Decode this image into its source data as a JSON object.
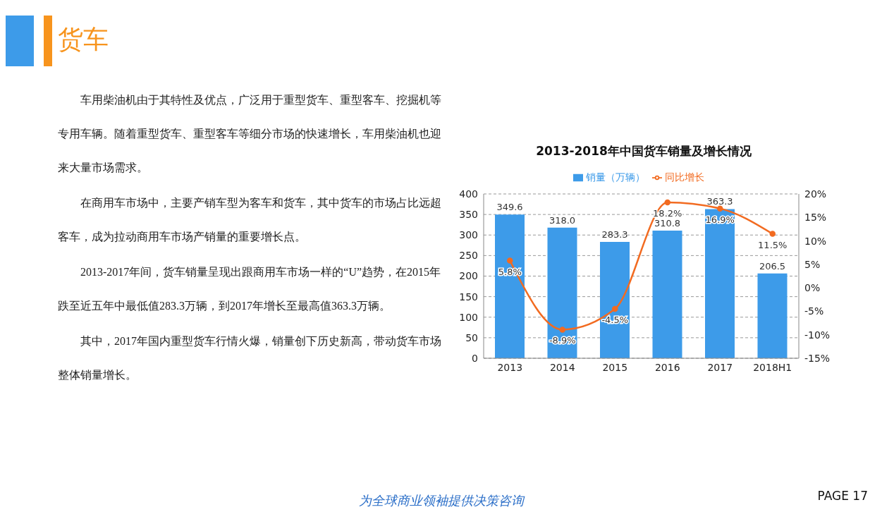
{
  "chart_data": {
    "type": "bar",
    "title": "2013-2018年中国货车销量及增长情况",
    "categories": [
      "2013",
      "2014",
      "2015",
      "2016",
      "2017",
      "2018H1"
    ],
    "series": [
      {
        "name": "销量（万辆）",
        "color": "#3d9be9",
        "values": [
          349.6,
          318.0,
          283.3,
          310.8,
          363.3,
          206.5
        ],
        "value_labels": [
          "349.6",
          "318.0",
          "283.3",
          "310.8",
          "363.3",
          "206.5"
        ]
      },
      {
        "name": "同比增长",
        "type": "line",
        "axis": "y2",
        "color": "#f26b21",
        "values": [
          5.8,
          -8.9,
          -4.5,
          18.2,
          16.9,
          11.5
        ],
        "value_labels": [
          "5.8%",
          "-8.9%",
          "-4.5%",
          "18.2%",
          "16.9%",
          "11.5%"
        ]
      }
    ],
    "ylim": [
      0,
      400
    ],
    "yticks": [
      0,
      50,
      100,
      150,
      200,
      250,
      300,
      350,
      400
    ],
    "y2lim": [
      -15,
      20
    ],
    "y2ticks": [
      {
        "value": -15,
        "label": "-15%"
      },
      {
        "value": -10,
        "label": "-10%"
      },
      {
        "value": -5,
        "label": "-5%"
      },
      {
        "value": 0,
        "label": "0%"
      },
      {
        "value": 5,
        "label": "5%"
      },
      {
        "value": 10,
        "label": "10%"
      },
      {
        "value": 15,
        "label": "15%"
      },
      {
        "value": 20,
        "label": "20%"
      }
    ],
    "grid": "y",
    "legend": "top",
    "marker": "circle",
    "line_style": "solid",
    "annotations": [
      "货车",
      "车用柴油机由于其特性及优点，广泛用于重型货车、重型客车、挖掘机等专用车辆。随着重型货车、重型客车等细分市场的快速增长，车用柴油机也迎来大量市场需求。",
      "在商用车市场中，主要产销车型为客车和货车，其中货车的市场占比远超客车，成为拉动商用车市场产销量的重要增长点。",
      "2013-2017年间，货车销量呈现出跟商用车市场一样的“U”趋势，在2015年跌至近五年中最低值283.3万辆，到2017年增长至最高值363.3万辆。",
      "其中，2017年国内重型货车行情火爆，销量创下历史新高，带动货车市场整体销量增长。",
      "为全球商业领袖提供决策咨询",
      "PAGE 17"
    ]
  }
}
